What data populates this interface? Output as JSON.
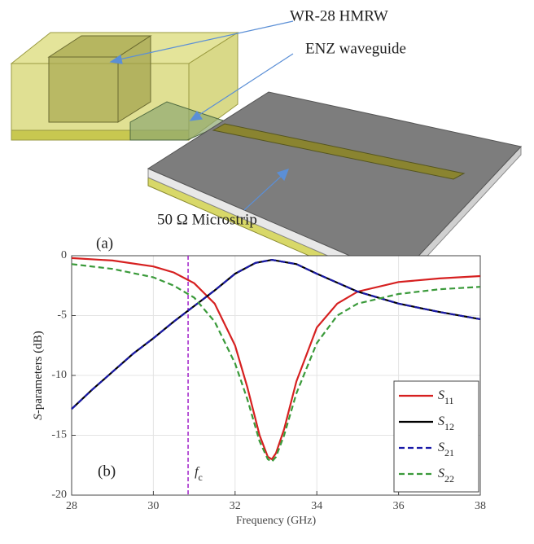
{
  "diagram": {
    "label_hmrw": "WR-28 HMRW",
    "label_enz": "ENZ waveguide",
    "label_microstrip": "50 Ω Microstrip",
    "panel_label": "(a)"
  },
  "chart_data": {
    "type": "line",
    "panel_label": "(b)",
    "x_label": "Frequency (GHz)",
    "y_label": "S-parameters (dB)",
    "xlim": [
      28,
      38
    ],
    "ylim": [
      -20,
      0
    ],
    "xticks": [
      28,
      30,
      32,
      34,
      36,
      38
    ],
    "yticks": [
      -20,
      -15,
      -10,
      -5,
      0
    ],
    "grid": true,
    "legend": "lower right",
    "vline": {
      "x": 30.85,
      "label": "fc",
      "color": "#a020c8"
    },
    "series": [
      {
        "name": "S11",
        "color": "#d62020",
        "dash": false,
        "x": [
          28,
          29,
          30,
          30.5,
          31,
          31.5,
          32,
          32.3,
          32.6,
          32.8,
          32.9,
          33,
          33.2,
          33.5,
          34,
          34.5,
          35,
          36,
          37,
          38
        ],
        "values": [
          -0.2,
          -0.4,
          -0.9,
          -1.4,
          -2.3,
          -4,
          -7.5,
          -11,
          -15,
          -16.8,
          -17,
          -16.5,
          -14.5,
          -10.5,
          -6,
          -4,
          -3,
          -2.2,
          -1.9,
          -1.7
        ]
      },
      {
        "name": "S12",
        "color": "#000000",
        "dash": false,
        "x": [
          28,
          28.5,
          29,
          29.5,
          30,
          30.5,
          31,
          31.5,
          32,
          32.5,
          32.9,
          33.5,
          34,
          35,
          36,
          37,
          38
        ],
        "values": [
          -12.8,
          -11.2,
          -9.7,
          -8.2,
          -6.9,
          -5.5,
          -4.2,
          -2.9,
          -1.5,
          -0.6,
          -0.35,
          -0.7,
          -1.5,
          -3,
          -4,
          -4.7,
          -5.3
        ]
      },
      {
        "name": "S21",
        "color": "#1a1aa8",
        "dash": true,
        "x": [
          28,
          28.5,
          29,
          29.5,
          30,
          30.5,
          31,
          31.5,
          32,
          32.5,
          32.9,
          33.5,
          34,
          35,
          36,
          37,
          38
        ],
        "values": [
          -12.8,
          -11.2,
          -9.7,
          -8.2,
          -6.9,
          -5.5,
          -4.2,
          -2.9,
          -1.5,
          -0.6,
          -0.35,
          -0.7,
          -1.5,
          -3,
          -4,
          -4.7,
          -5.3
        ]
      },
      {
        "name": "S22",
        "color": "#3a9a3a",
        "dash": true,
        "x": [
          28,
          29,
          30,
          30.5,
          31,
          31.5,
          32,
          32.3,
          32.6,
          32.8,
          32.9,
          33,
          33.2,
          33.5,
          34,
          34.5,
          35,
          36,
          37,
          38
        ],
        "values": [
          -0.7,
          -1.1,
          -1.8,
          -2.5,
          -3.5,
          -5.5,
          -9,
          -12,
          -15.5,
          -17,
          -17.2,
          -16.8,
          -15,
          -11.5,
          -7.3,
          -5,
          -4,
          -3.2,
          -2.8,
          -2.6
        ]
      }
    ]
  }
}
